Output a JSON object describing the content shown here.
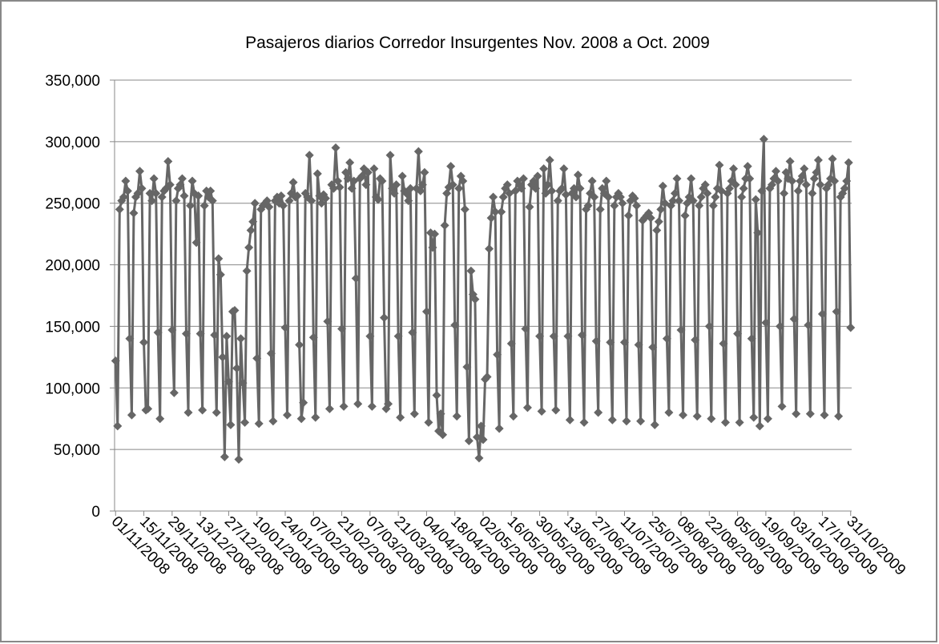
{
  "chart_data": {
    "type": "line",
    "title": "Pasajeros diarios Corredor Insurgentes Nov. 2008 a Oct. 2009",
    "categories": [
      "01/11/2008",
      null,
      null,
      null,
      null,
      null,
      null,
      null,
      null,
      null,
      null,
      null,
      null,
      null,
      "15/11/2008",
      null,
      null,
      null,
      null,
      null,
      null,
      null,
      null,
      null,
      null,
      null,
      null,
      null,
      "29/11/2008",
      null,
      null,
      null,
      null,
      null,
      null,
      null,
      null,
      null,
      null,
      null,
      null,
      null,
      "13/12/2008",
      null,
      null,
      null,
      null,
      null,
      null,
      null,
      null,
      null,
      null,
      null,
      null,
      null,
      "27/12/2008",
      null,
      null,
      null,
      null,
      null,
      null,
      null,
      null,
      null,
      null,
      null,
      null,
      null,
      "10/01/2009",
      null,
      null,
      null,
      null,
      null,
      null,
      null,
      null,
      null,
      null,
      null,
      null,
      null,
      "24/01/2009",
      null,
      null,
      null,
      null,
      null,
      null,
      null,
      null,
      null,
      null,
      null,
      null,
      null,
      "07/02/2009",
      null,
      null,
      null,
      null,
      null,
      null,
      null,
      null,
      null,
      null,
      null,
      null,
      null,
      "21/02/2009",
      null,
      null,
      null,
      null,
      null,
      null,
      null,
      null,
      null,
      null,
      null,
      null,
      null,
      "07/03/2009",
      null,
      null,
      null,
      null,
      null,
      null,
      null,
      null,
      null,
      null,
      null,
      null,
      null,
      "21/03/2009",
      null,
      null,
      null,
      null,
      null,
      null,
      null,
      null,
      null,
      null,
      null,
      null,
      null,
      "04/04/2009",
      null,
      null,
      null,
      null,
      null,
      null,
      null,
      null,
      null,
      null,
      null,
      null,
      null,
      "18/04/2009",
      null,
      null,
      null,
      null,
      null,
      null,
      null,
      null,
      null,
      null,
      null,
      null,
      null,
      "02/05/2009",
      null,
      null,
      null,
      null,
      null,
      null,
      null,
      null,
      null,
      null,
      null,
      null,
      null,
      "16/05/2009",
      null,
      null,
      null,
      null,
      null,
      null,
      null,
      null,
      null,
      null,
      null,
      null,
      null,
      "30/05/2009",
      null,
      null,
      null,
      null,
      null,
      null,
      null,
      null,
      null,
      null,
      null,
      null,
      null,
      "13/06/2009",
      null,
      null,
      null,
      null,
      null,
      null,
      null,
      null,
      null,
      null,
      null,
      null,
      null,
      "27/06/2009",
      null,
      null,
      null,
      null,
      null,
      null,
      null,
      null,
      null,
      null,
      null,
      null,
      null,
      "11/07/2009",
      null,
      null,
      null,
      null,
      null,
      null,
      null,
      null,
      null,
      null,
      null,
      null,
      null,
      "25/07/2009",
      null,
      null,
      null,
      null,
      null,
      null,
      null,
      null,
      null,
      null,
      null,
      null,
      null,
      "08/08/2009",
      null,
      null,
      null,
      null,
      null,
      null,
      null,
      null,
      null,
      null,
      null,
      null,
      null,
      "22/08/2009",
      null,
      null,
      null,
      null,
      null,
      null,
      null,
      null,
      null,
      null,
      null,
      null,
      null,
      "05/09/2009",
      null,
      null,
      null,
      null,
      null,
      null,
      null,
      null,
      null,
      null,
      null,
      null,
      null,
      "19/09/2009",
      null,
      null,
      null,
      null,
      null,
      null,
      null,
      null,
      null,
      null,
      null,
      null,
      null,
      "03/10/2009",
      null,
      null,
      null,
      null,
      null,
      null,
      null,
      null,
      null,
      null,
      null,
      null,
      null,
      "17/10/2009",
      null,
      null,
      null,
      null,
      null,
      null,
      null,
      null,
      null,
      null,
      null,
      null,
      null,
      "31/10/2009"
    ],
    "series": [
      {
        "color": "#666666",
        "values": [
          122000,
          69000,
          245000,
          252000,
          255000,
          268000,
          260000,
          140000,
          78000,
          242000,
          255000,
          258000,
          276000,
          262000,
          137000,
          82000,
          83000,
          258000,
          252000,
          270000,
          258000,
          145000,
          75000,
          255000,
          260000,
          262000,
          284000,
          265000,
          147000,
          96000,
          252000,
          262000,
          265000,
          270000,
          256000,
          144000,
          80000,
          248000,
          268000,
          258000,
          218000,
          256000,
          144000,
          82000,
          248000,
          260000,
          255000,
          260000,
          252000,
          143000,
          80000,
          205000,
          192000,
          125000,
          44000,
          142000,
          105000,
          70000,
          162000,
          163000,
          116000,
          42000,
          140000,
          104000,
          72000,
          195000,
          214000,
          228000,
          235000,
          250000,
          124000,
          71000,
          245000,
          248000,
          250000,
          252000,
          247000,
          128000,
          73000,
          252000,
          255000,
          250000,
          256000,
          248000,
          149000,
          78000,
          252000,
          258000,
          267000,
          255000,
          256000,
          135000,
          75000,
          88000,
          258000,
          255000,
          289000,
          252000,
          141000,
          76000,
          274000,
          256000,
          250000,
          257000,
          254000,
          154000,
          83000,
          265000,
          262000,
          295000,
          268000,
          263000,
          148000,
          85000,
          275000,
          270000,
          283000,
          262000,
          268000,
          189000,
          87000,
          270000,
          272000,
          278000,
          265000,
          275000,
          142000,
          85000,
          278000,
          255000,
          253000,
          270000,
          268000,
          157000,
          83000,
          87000,
          289000,
          262000,
          258000,
          265000,
          142000,
          76000,
          272000,
          260000,
          258000,
          252000,
          262000,
          145000,
          79000,
          262000,
          292000,
          260000,
          265000,
          275000,
          162000,
          72000,
          226000,
          214000,
          225000,
          94000,
          65000,
          79000,
          62000,
          232000,
          258000,
          263000,
          280000,
          265000,
          151000,
          77000,
          262000,
          272000,
          268000,
          245000,
          117000,
          57000,
          195000,
          176000,
          172000,
          60000,
          43000,
          69000,
          58000,
          107000,
          109000,
          213000,
          238000,
          255000,
          243000,
          127000,
          67000,
          243000,
          255000,
          262000,
          265000,
          258000,
          136000,
          77000,
          260000,
          268000,
          265000,
          262000,
          270000,
          148000,
          84000,
          247000,
          265000,
          268000,
          262000,
          272000,
          142000,
          81000,
          278000,
          258000,
          265000,
          285000,
          260000,
          142000,
          82000,
          252000,
          260000,
          262000,
          278000,
          257000,
          142000,
          74000,
          258000,
          262000,
          255000,
          273000,
          262000,
          143000,
          72000,
          245000,
          248000,
          258000,
          268000,
          255000,
          138000,
          80000,
          245000,
          262000,
          258000,
          268000,
          255000,
          137000,
          74000,
          248000,
          255000,
          258000,
          255000,
          250000,
          137000,
          73000,
          240000,
          252000,
          256000,
          254000,
          248000,
          135000,
          73000,
          236000,
          238000,
          240000,
          242000,
          238000,
          133000,
          70000,
          228000,
          235000,
          245000,
          264000,
          250000,
          140000,
          80000,
          248000,
          252000,
          258000,
          270000,
          252000,
          147000,
          78000,
          240000,
          250000,
          255000,
          270000,
          252000,
          139000,
          77000,
          248000,
          255000,
          262000,
          265000,
          258000,
          150000,
          75000,
          248000,
          255000,
          262000,
          281000,
          260000,
          136000,
          72000,
          258000,
          262000,
          268000,
          278000,
          265000,
          144000,
          72000,
          255000,
          262000,
          270000,
          280000,
          270000,
          140000,
          76000,
          253000,
          226000,
          69000,
          260000,
          302000,
          153000,
          75000,
          262000,
          265000,
          270000,
          276000,
          268000,
          150000,
          85000,
          258000,
          275000,
          270000,
          284000,
          268000,
          156000,
          79000,
          260000,
          268000,
          272000,
          278000,
          265000,
          151000,
          79000,
          258000,
          270000,
          275000,
          285000,
          265000,
          160000,
          78000,
          262000,
          265000,
          270000,
          286000,
          268000,
          162000,
          77000,
          255000,
          258000,
          262000,
          268000,
          283000,
          149000
        ]
      }
    ],
    "ylim": [
      0,
      350000
    ],
    "yticks": [
      0,
      {
        "value": 50000,
        "label": "50,000"
      },
      {
        "value": 100000,
        "label": "100,000"
      },
      {
        "value": 150000,
        "label": "150,000"
      },
      {
        "value": 200000,
        "label": "200,000"
      },
      {
        "value": 250000,
        "label": "250,000"
      },
      {
        "value": 300000,
        "label": "300,000"
      },
      {
        "value": 350000,
        "label": "350,000"
      }
    ],
    "grid": true
  }
}
